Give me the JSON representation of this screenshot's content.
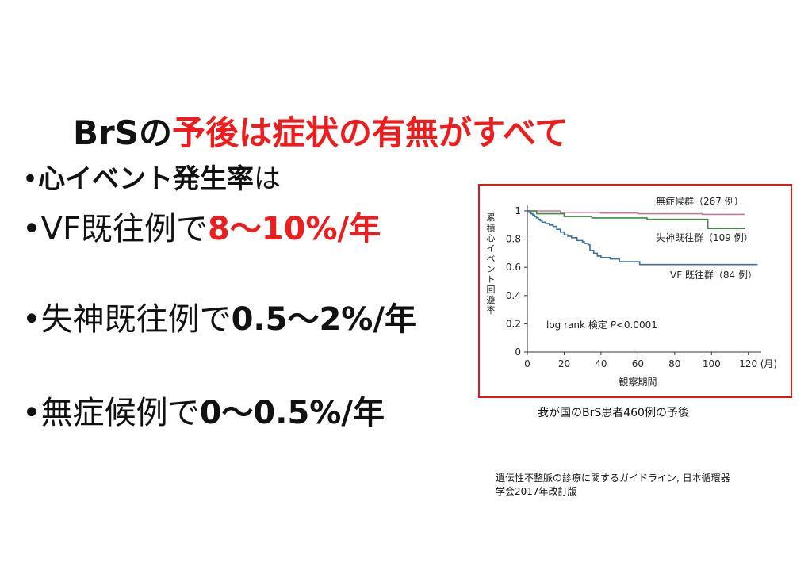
{
  "title": {
    "black": "BrSの",
    "red": "予後は症状の有無がすべて"
  },
  "bullets": [
    {
      "marker": "•",
      "bold": "心イベント発生率",
      "normal": "は"
    },
    {
      "marker": "•",
      "label": "VF既往例で",
      "value": "8〜10%/年"
    },
    {
      "marker": "•",
      "label": "失神既往例で",
      "value": "0.5〜2%/年"
    },
    {
      "marker": "•",
      "label": "無症候例で",
      "value": "0〜0.5%/年"
    }
  ],
  "caption": "我が国のBrS患者460例の予後",
  "source": [
    "遺伝性不整脈の診療に関するガイドライン, 日本循環器",
    "学会2017年改訂版"
  ],
  "colors": {
    "accent_red": "#ee1c1c",
    "border_red": "#e01818"
  },
  "chart_data": {
    "type": "line",
    "step": true,
    "xlabel": "観察期間",
    "ylabel": "累積心イベント回避率",
    "x_unit": "(月)",
    "xlim": [
      0,
      127
    ],
    "ylim": [
      0,
      1
    ],
    "xticks": [
      0,
      20,
      40,
      60,
      80,
      100,
      120
    ],
    "yticks": [
      {
        "v": 0,
        "label": "0"
      },
      {
        "v": 0.2,
        "label": "0.2"
      },
      {
        "v": 0.4,
        "label": "0.4"
      },
      {
        "v": 0.6,
        "label": "0.6"
      },
      {
        "v": 0.8,
        "label": "0.8"
      },
      {
        "v": 1,
        "label": "1"
      }
    ],
    "annotation": {
      "text": "log rank 検定 ",
      "p": "P",
      "rest": "<0.0001"
    },
    "series": [
      {
        "name": "無症候群（267 例）",
        "color": "#c07a9a",
        "points": [
          [
            0,
            1
          ],
          [
            18,
            0.99
          ],
          [
            40,
            0.985
          ],
          [
            60,
            0.98
          ],
          [
            80,
            0.98
          ],
          [
            95,
            0.975
          ],
          [
            118,
            0.975
          ]
        ]
      },
      {
        "name": "失神既往群（109 例）",
        "color": "#3f8a3f",
        "points": [
          [
            0,
            1
          ],
          [
            5,
            0.98
          ],
          [
            20,
            0.96
          ],
          [
            35,
            0.95
          ],
          [
            45,
            0.95
          ],
          [
            65,
            0.94
          ],
          [
            97,
            0.94
          ],
          [
            98,
            0.875
          ],
          [
            118,
            0.875
          ]
        ]
      },
      {
        "name": "VF 既往群（84 例）",
        "color": "#3a6ea5",
        "points": [
          [
            0,
            1
          ],
          [
            1,
            0.99
          ],
          [
            2,
            0.98
          ],
          [
            3,
            0.97
          ],
          [
            4,
            0.96
          ],
          [
            5,
            0.95
          ],
          [
            6,
            0.94
          ],
          [
            7,
            0.93
          ],
          [
            8,
            0.92
          ],
          [
            10,
            0.91
          ],
          [
            12,
            0.9
          ],
          [
            14,
            0.89
          ],
          [
            16,
            0.87
          ],
          [
            18,
            0.85
          ],
          [
            20,
            0.83
          ],
          [
            22,
            0.82
          ],
          [
            24,
            0.81
          ],
          [
            27,
            0.79
          ],
          [
            30,
            0.78
          ],
          [
            31,
            0.77
          ],
          [
            33,
            0.76
          ],
          [
            34,
            0.72
          ],
          [
            36,
            0.7
          ],
          [
            38,
            0.68
          ],
          [
            40,
            0.67
          ],
          [
            45,
            0.66
          ],
          [
            50,
            0.64
          ],
          [
            60,
            0.64
          ],
          [
            61,
            0.62
          ],
          [
            125,
            0.62
          ]
        ]
      }
    ]
  }
}
